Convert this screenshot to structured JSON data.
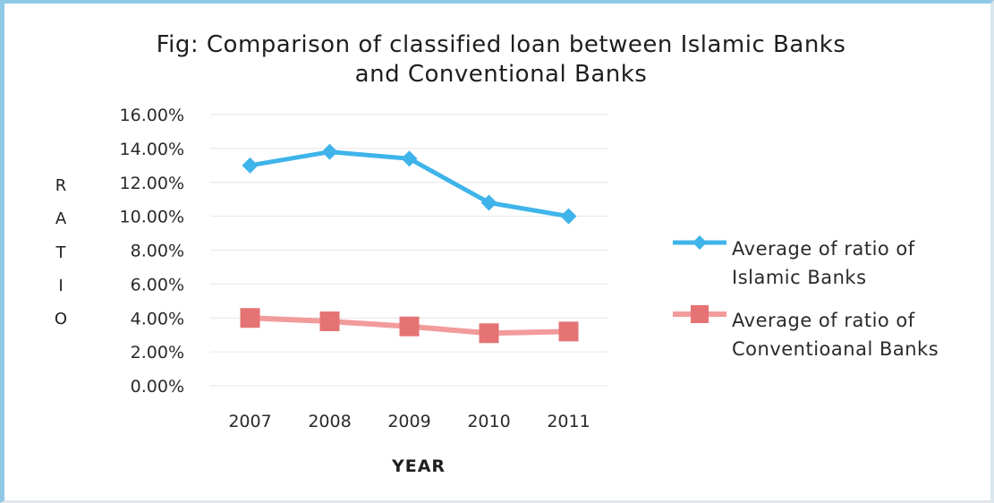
{
  "chart_data": {
    "type": "line",
    "title": "Fig: Comparison of classified loan between Islamic Banks",
    "title_line2": "and Conventional Banks",
    "xlabel": "YEAR",
    "ylabel_letters": [
      "R",
      "A",
      "T",
      "I",
      "O"
    ],
    "categories": [
      "2007",
      "2008",
      "2009",
      "2010",
      "2011"
    ],
    "y_ticks": [
      "0.00%",
      "2.00%",
      "4.00%",
      "6.00%",
      "8.00%",
      "10.00%",
      "12.00%",
      "14.00%",
      "16.00%"
    ],
    "ylim": [
      0,
      16
    ],
    "grid": true,
    "legend_position": "right",
    "series": [
      {
        "name": "Average of ratio of Islamic Banks",
        "legend_lines": [
          "Average of ratio of",
          "Islamic Banks"
        ],
        "values": [
          13.0,
          13.8,
          13.4,
          10.8,
          10.0
        ],
        "color": "#3fb4ea",
        "marker": "diamond"
      },
      {
        "name": "Average of ratio of Conventioanal Banks",
        "legend_lines": [
          "Average of ratio of",
          "Conventioanal Banks"
        ],
        "values": [
          4.0,
          3.8,
          3.5,
          3.1,
          3.2
        ],
        "color": "#f29b9b",
        "marker_color": "#e57373",
        "marker": "square"
      }
    ]
  }
}
